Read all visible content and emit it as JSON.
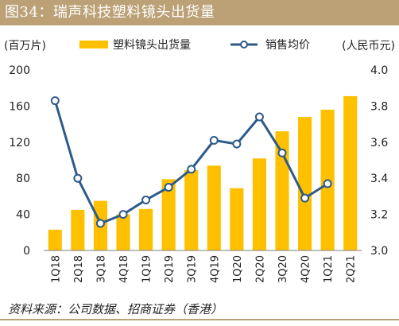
{
  "figure": {
    "title": "图34：瑞声科技塑料镜头出货量",
    "source": "资料来源：公司数据、招商证券（香港）"
  },
  "chart_data": {
    "type": "bar",
    "categories": [
      "1Q18",
      "2Q18",
      "3Q18",
      "4Q18",
      "1Q19",
      "2Q19",
      "3Q19",
      "4Q19",
      "1Q20",
      "2Q20",
      "3Q20",
      "4Q20",
      "1Q21",
      "2Q21"
    ],
    "series": [
      {
        "name": "塑料镜头出货量",
        "type": "bar",
        "axis": "left",
        "color": "#ffc000",
        "values": [
          23,
          45,
          55,
          40,
          46,
          79,
          89,
          94,
          69,
          102,
          132,
          148,
          156,
          171
        ]
      },
      {
        "name": "销售均价",
        "type": "line",
        "axis": "right",
        "color": "#2e5a8a",
        "values": [
          3.83,
          3.4,
          3.15,
          3.2,
          3.28,
          3.35,
          3.45,
          3.61,
          3.59,
          3.74,
          3.54,
          3.29,
          3.37,
          null
        ]
      }
    ],
    "y_left": {
      "label": "(百万片)",
      "ylim": [
        0,
        200
      ],
      "ticks": [
        "0",
        "40",
        "80",
        "120",
        "160",
        "200"
      ]
    },
    "y_right": {
      "label": "(人民币元)",
      "ylim": [
        3.0,
        4.0
      ],
      "ticks": [
        "3.0",
        "3.2",
        "3.4",
        "3.6",
        "3.8",
        "4.0"
      ]
    },
    "grid": false,
    "legend_position": "top-center"
  }
}
